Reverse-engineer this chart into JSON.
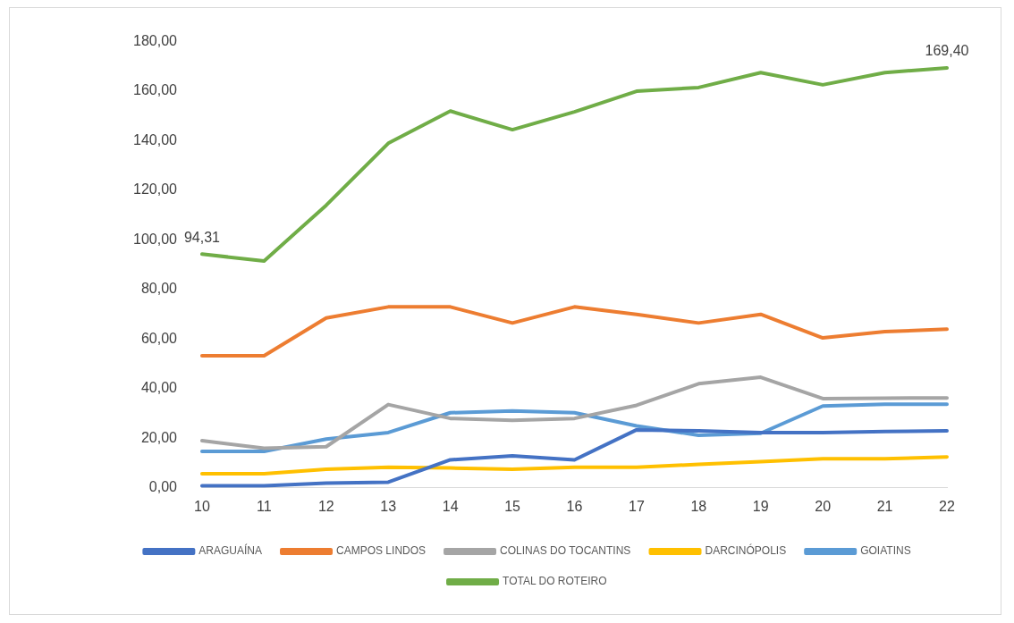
{
  "chart_data": {
    "type": "line",
    "categories": [
      "10",
      "11",
      "12",
      "13",
      "14",
      "15",
      "16",
      "17",
      "18",
      "19",
      "20",
      "21",
      "22"
    ],
    "series": [
      {
        "name": "ARAGUAÍNA",
        "color": "#4472c4",
        "values": [
          0.8,
          0.8,
          1.9,
          2.3,
          11.3,
          12.9,
          11.3,
          23.4,
          23,
          22.3,
          22.3,
          22.7,
          23
        ]
      },
      {
        "name": "CAMPOS LINDOS",
        "color": "#ed7d31",
        "values": [
          53.3,
          53.3,
          68.5,
          73,
          73,
          66.5,
          73,
          70,
          66.5,
          70,
          60.5,
          63,
          64
        ]
      },
      {
        "name": "COLINAS DO TOCANTINS",
        "color": "#a5a5a5",
        "values": [
          19,
          16,
          16.6,
          33.6,
          28,
          27.2,
          28,
          33.3,
          42,
          44.6,
          36,
          36.2,
          36.3
        ]
      },
      {
        "name": "DARCINÓPOLIS",
        "color": "#ffc000",
        "values": [
          5.7,
          5.7,
          7.5,
          8.3,
          8,
          7.5,
          8.3,
          8.3,
          9.5,
          10.6,
          11.7,
          11.7,
          12.5
        ]
      },
      {
        "name": "GOIATINS",
        "color": "#5b9bd5",
        "values": [
          14.7,
          14.7,
          19.7,
          22.3,
          30.3,
          31,
          30.3,
          25,
          21.2,
          22,
          33,
          33.7,
          33.7
        ]
      },
      {
        "name": "TOTAL DO ROTEIRO",
        "color": "#70ad47",
        "values": [
          94.31,
          91.5,
          114,
          139,
          152,
          144.5,
          151.7,
          160,
          161.5,
          167.5,
          162.6,
          167.5,
          169.4
        ]
      }
    ],
    "ylim": [
      0,
      180
    ],
    "yticks": [
      {
        "value": 0,
        "label": "0,00"
      },
      {
        "value": 20,
        "label": "20,00"
      },
      {
        "value": 40,
        "label": "40,00"
      },
      {
        "value": 60,
        "label": "60,00"
      },
      {
        "value": 80,
        "label": "80,00"
      },
      {
        "value": 100,
        "label": "100,00"
      },
      {
        "value": 120,
        "label": "120,00"
      },
      {
        "value": 140,
        "label": "140,00"
      },
      {
        "value": 160,
        "label": "160,00"
      },
      {
        "value": 180,
        "label": "180,00"
      }
    ],
    "annotations": [
      {
        "text": "94,31",
        "x": "10",
        "y": 94.31
      },
      {
        "text": "169,40",
        "x": "22",
        "y": 169.4
      }
    ],
    "grid": false,
    "legend": "bottom",
    "marker": "none",
    "line_style": "solid"
  }
}
